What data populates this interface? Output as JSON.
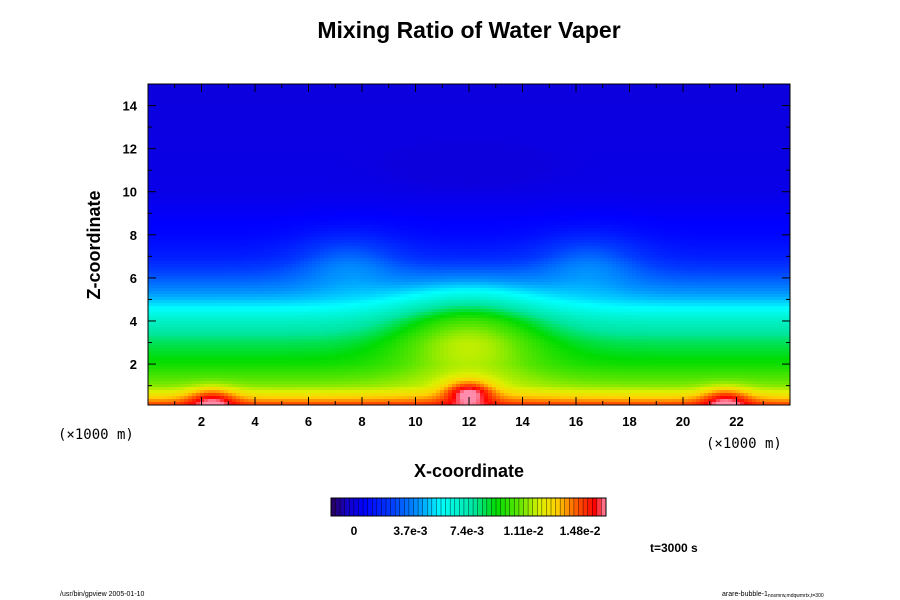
{
  "chart_data": {
    "type": "heatmap",
    "title": "Mixing Ratio of Water Vaper",
    "xlabel": "X-coordinate",
    "ylabel": "Z-coordinate",
    "x_unit": "(×1000 m)",
    "y_unit": "(×1000 m)",
    "xlim": [
      0,
      24
    ],
    "ylim": [
      0.1,
      15
    ],
    "x_ticks": [
      2,
      4,
      6,
      8,
      10,
      12,
      14,
      16,
      18,
      20,
      22
    ],
    "y_ticks": [
      2,
      4,
      6,
      8,
      10,
      12,
      14
    ],
    "colorbar": {
      "tick_labels": [
        "0",
        "3.7e-3",
        "7.4e-3",
        "1.11e-2",
        "1.48e-2"
      ],
      "tick_values": [
        0,
        0.0037,
        0.0074,
        0.0111,
        0.0148
      ],
      "min": -0.0015,
      "max": 0.0165
    },
    "field_description": {
      "background_profile": [
        {
          "z": 0.1,
          "value": 0.015
        },
        {
          "z": 0.5,
          "value": 0.013
        },
        {
          "z": 1.0,
          "value": 0.0112
        },
        {
          "z": 2.0,
          "value": 0.0095
        },
        {
          "z": 3.0,
          "value": 0.0085
        },
        {
          "z": 4.0,
          "value": 0.007
        },
        {
          "z": 5.0,
          "value": 0.0048
        },
        {
          "z": 6.0,
          "value": 0.003
        },
        {
          "z": 7.0,
          "value": 0.0015
        },
        {
          "z": 8.0,
          "value": 0.0008
        },
        {
          "z": 10.0,
          "value": 0.0002
        },
        {
          "z": 15.0,
          "value": 0.0
        }
      ],
      "bubbles": [
        {
          "x": 12.0,
          "z": 0.7,
          "peak": 0.016
        },
        {
          "x": 2.4,
          "z": 0.4,
          "peak": 0.016
        },
        {
          "x": 21.6,
          "z": 0.4,
          "peak": 0.016
        }
      ]
    },
    "time_label": "t=3000 s"
  },
  "footer": {
    "left": "/usr/bin/gpview 2005-01-10",
    "right": "arare-bubble-1",
    "right_sub": "nosmrw,mdqwmrtx,t=300"
  }
}
